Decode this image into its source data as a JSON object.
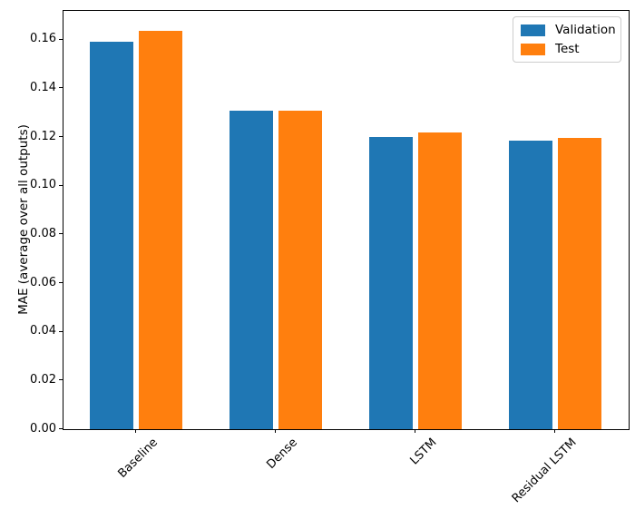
{
  "chart_data": {
    "type": "bar",
    "title": "",
    "xlabel": "",
    "ylabel": "MAE (average over all outputs)",
    "categories": [
      "Baseline",
      "Dense",
      "LSTM",
      "Residual LSTM"
    ],
    "series": [
      {
        "name": "Validation",
        "color": "#1f77b4",
        "values": [
          0.159,
          0.131,
          0.1202,
          0.1185
        ]
      },
      {
        "name": "Test",
        "color": "#ff7f0e",
        "values": [
          0.1638,
          0.131,
          0.1218,
          0.1195
        ]
      }
    ],
    "ylim": [
      0,
      0.1718
    ],
    "yticks": [
      0.0,
      0.02,
      0.04,
      0.06,
      0.08,
      0.1,
      0.12,
      0.14,
      0.16
    ],
    "ytick_decimals": 2,
    "x_tick_rotation": 45,
    "grid": false,
    "legend": {
      "position": "upper right",
      "entries": [
        "Validation",
        "Test"
      ]
    }
  }
}
